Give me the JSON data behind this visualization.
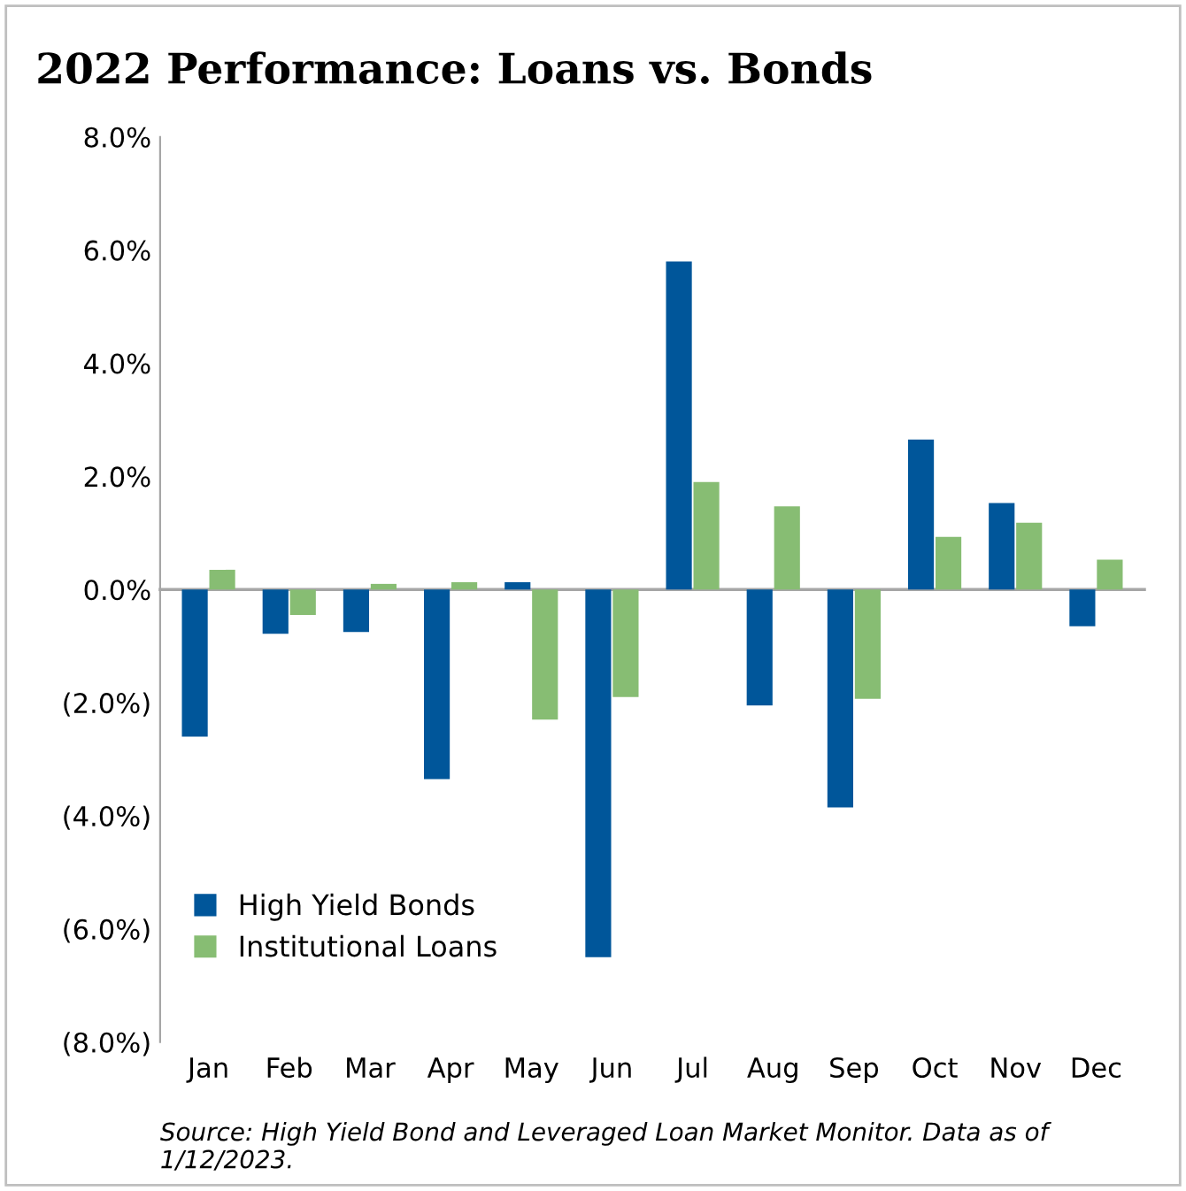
{
  "chart_data": {
    "type": "bar",
    "title": "2022 Performance: Loans vs. Bonds",
    "categories": [
      "Jan",
      "Feb",
      "Mar",
      "Apr",
      "May",
      "Jun",
      "Jul",
      "Aug",
      "Sep",
      "Oct",
      "Nov",
      "Dec"
    ],
    "series": [
      {
        "name": "High Yield Bonds",
        "color": "#00569a",
        "values": [
          -2.6,
          -0.78,
          -0.75,
          -3.35,
          0.13,
          -6.5,
          5.8,
          -2.05,
          -3.85,
          2.65,
          1.53,
          -0.65
        ]
      },
      {
        "name": "Institutional Loans",
        "color": "#87bd73",
        "values": [
          0.35,
          -0.45,
          0.1,
          0.13,
          -2.3,
          -1.9,
          1.9,
          1.47,
          -1.93,
          0.93,
          1.18,
          0.53
        ]
      }
    ],
    "ylim": [
      -8,
      8
    ],
    "yticks": [
      {
        "value": -8,
        "label": "(8.0%)"
      },
      {
        "value": -6,
        "label": "(6.0%)"
      },
      {
        "value": -4,
        "label": "(4.0%)"
      },
      {
        "value": -2,
        "label": "(2.0%)"
      },
      {
        "value": 0,
        "label": "0.0%"
      },
      {
        "value": 2,
        "label": "2.0%"
      },
      {
        "value": 4,
        "label": "4.0%"
      },
      {
        "value": 6,
        "label": "6.0%"
      },
      {
        "value": 8,
        "label": "8.0%"
      }
    ],
    "legend": "bottom left",
    "annotations": [
      "Source: High Yield Bond and Leveraged Loan Market Monitor. Data as of 1/12/2023."
    ]
  }
}
